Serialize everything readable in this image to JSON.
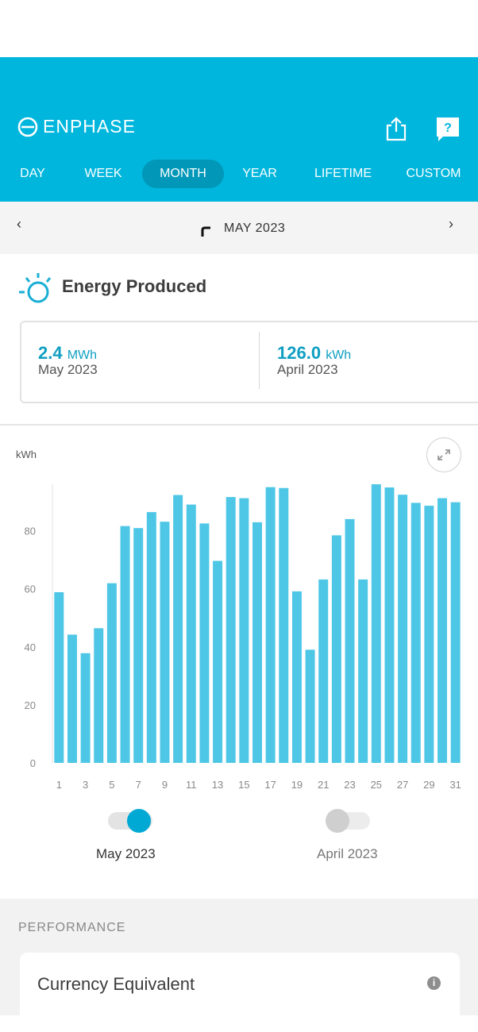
{
  "header": {
    "logo_text": "ENPHASE",
    "icons": [
      "share-icon",
      "help-icon"
    ],
    "help_glyph": "?",
    "accent_color": "#00b6dd"
  },
  "tabs": [
    {
      "label": "DAY"
    },
    {
      "label": "WEEK"
    },
    {
      "label": "MONTH",
      "active": true
    },
    {
      "label": "YEAR"
    },
    {
      "label": "LIFETIME"
    },
    {
      "label": "CUSTOM"
    }
  ],
  "date_nav": {
    "prev": "‹",
    "next": "›",
    "label": "MAY 2023"
  },
  "energy": {
    "title": "Energy Produced",
    "current": {
      "value": "2.4",
      "unit": "MWh",
      "period": "May 2023"
    },
    "previous": {
      "value": "126.0",
      "unit": "kWh",
      "period": "April 2023"
    }
  },
  "chart_data": {
    "type": "bar",
    "ylabel": "kWh",
    "ylim": [
      0,
      96
    ],
    "yticks": [
      0,
      20,
      40,
      60,
      80
    ],
    "grid": false,
    "categories": [
      "1",
      "2",
      "3",
      "4",
      "5",
      "6",
      "7",
      "8",
      "9",
      "10",
      "11",
      "12",
      "13",
      "14",
      "15",
      "16",
      "17",
      "18",
      "19",
      "20",
      "21",
      "22",
      "23",
      "24",
      "25",
      "26",
      "27",
      "28",
      "29",
      "30",
      "31"
    ],
    "xticks": [
      "1",
      "3",
      "5",
      "7",
      "9",
      "11",
      "13",
      "15",
      "17",
      "19",
      "21",
      "23",
      "25",
      "27",
      "29",
      "31"
    ],
    "series": [
      {
        "name": "May 2023",
        "color": "#4ec7e6",
        "values": [
          58.8,
          44.2,
          37.8,
          46.4,
          61.9,
          81.6,
          80.9,
          86.4,
          83.1,
          92.3,
          89.0,
          82.5,
          69.6,
          91.6,
          91.2,
          82.9,
          95.0,
          94.7,
          59.1,
          39.0,
          63.2,
          78.4,
          84.0,
          63.2,
          96.0,
          94.9,
          92.4,
          89.6,
          88.6,
          91.2,
          89.8
        ]
      }
    ]
  },
  "legend": [
    {
      "label": "May 2023",
      "on": true,
      "color": "#00a9d4"
    },
    {
      "label": "April 2023",
      "on": false,
      "color": "#cfcfcf"
    }
  ],
  "performance": {
    "section_title": "PERFORMANCE",
    "card_title": "Currency Equivalent",
    "info_glyph": "i"
  }
}
